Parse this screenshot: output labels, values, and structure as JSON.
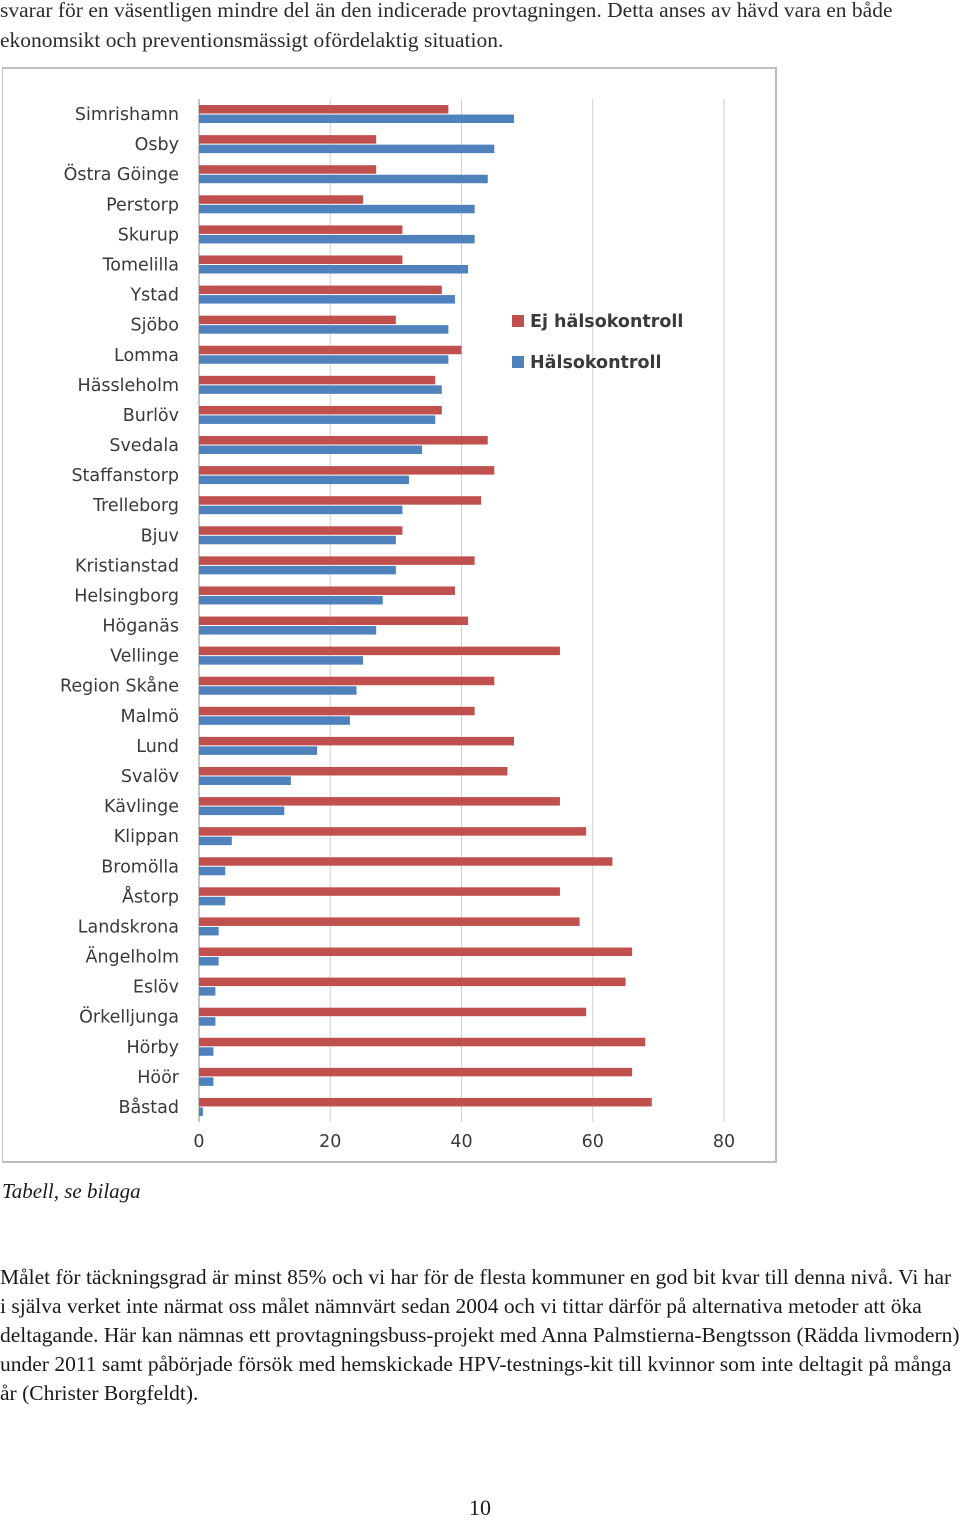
{
  "intro_text": "svarar för en väsentligen mindre del än den indicerade provtagningen. Detta anses av hävd vara en både ekonomsikt och preventionsmässigt ofördelaktig situation.",
  "chart_data": {
    "type": "bar",
    "orientation": "horizontal",
    "categories": [
      "Simrishamn",
      "Osby",
      "Östra Göinge",
      "Perstorp",
      "Skurup",
      "Tomelilla",
      "Ystad",
      "Sjöbo",
      "Lomma",
      "Hässleholm",
      "Burlöv",
      "Svedala",
      "Staffanstorp",
      "Trelleborg",
      "Bjuv",
      "Kristianstad",
      "Helsingborg",
      "Höganäs",
      "Vellinge",
      "Region Skåne",
      "Malmö",
      "Lund",
      "Svalöv",
      "Kävlinge",
      "Klippan",
      "Bromölla",
      "Åstorp",
      "Landskrona",
      "Ängelholm",
      "Eslöv",
      "Örkelljunga",
      "Hörby",
      "Höör",
      "Båstad"
    ],
    "series": [
      {
        "name": "Ej hälsokontroll",
        "color": "#c0504d",
        "values": [
          38,
          27,
          27,
          25,
          31,
          31,
          37,
          30,
          40,
          36,
          37,
          44,
          45,
          43,
          31,
          42,
          39,
          41,
          55,
          45,
          42,
          48,
          47,
          55,
          59,
          63,
          55,
          58,
          66,
          65,
          59,
          68,
          66,
          69
        ]
      },
      {
        "name": "Hälsokontroll",
        "color": "#4f81bd",
        "values": [
          48,
          45,
          44,
          42,
          42,
          41,
          39,
          38,
          38,
          37,
          36,
          34,
          32,
          31,
          30,
          30,
          28,
          27,
          25,
          24,
          23,
          18,
          14,
          13,
          5,
          4,
          4,
          3,
          3,
          2.5,
          2.5,
          2.2,
          2.2,
          0.6
        ]
      }
    ],
    "xticks": [
      "0",
      "20",
      "40",
      "60",
      "80"
    ],
    "xlim": [
      0,
      80
    ],
    "legend": "right"
  },
  "caption": "Tabell, se bilaga",
  "body_text": "Målet för täckningsgrad är minst 85% och vi har för de flesta kommuner en god bit kvar till denna nivå. Vi har i själva verket inte närmat oss målet nämnvärt sedan 2004 och vi tittar därför på alternativa metoder att öka deltagande. Här kan nämnas ett provtagningsbuss-projekt med Anna Palmstierna-Bengtsson (Rädda livmodern) under 2011 samt påbörjade försök med hemskickade HPV-testnings-kit till kvinnor som inte deltagit på många år (Christer Borgfeldt).",
  "page_number": "10"
}
